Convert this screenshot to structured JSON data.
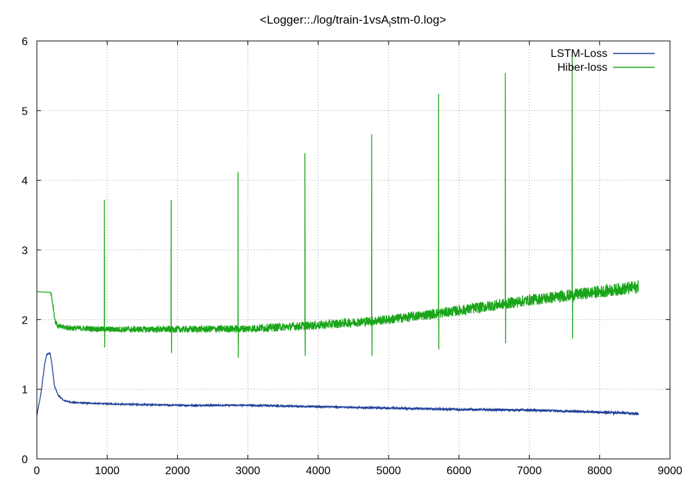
{
  "chart_data": {
    "type": "line",
    "title_prefix": "<Logger::./log/train-1vsA",
    "title_sub": "l",
    "title_suffix": "stm-0.log>",
    "xlabel": "",
    "ylabel": "",
    "xlim": [
      0,
      9000
    ],
    "ylim": [
      0,
      6
    ],
    "xticks": [
      0,
      1000,
      2000,
      3000,
      4000,
      5000,
      6000,
      7000,
      8000,
      9000
    ],
    "yticks": [
      0,
      1,
      2,
      3,
      4,
      5,
      6
    ],
    "grid": true,
    "legend_position": "top-right",
    "series": [
      {
        "name": "LSTM-Loss",
        "color": "#1f3f99",
        "noise": 0.012,
        "points": [
          [
            0,
            0.62
          ],
          [
            60,
            0.95
          ],
          [
            110,
            1.35
          ],
          [
            140,
            1.5
          ],
          [
            190,
            1.52
          ],
          [
            215,
            1.35
          ],
          [
            250,
            1.05
          ],
          [
            300,
            0.92
          ],
          [
            380,
            0.84
          ],
          [
            500,
            0.81
          ],
          [
            1000,
            0.79
          ],
          [
            2000,
            0.77
          ],
          [
            3000,
            0.77
          ],
          [
            4000,
            0.75
          ],
          [
            5000,
            0.73
          ],
          [
            6000,
            0.71
          ],
          [
            7000,
            0.7
          ],
          [
            8000,
            0.67
          ],
          [
            8550,
            0.65
          ]
        ]
      },
      {
        "name": "Hiber-loss",
        "color": "#1aa51a",
        "noise": 0.06,
        "points": [
          [
            0,
            2.4
          ],
          [
            200,
            2.39
          ],
          [
            230,
            2.2
          ],
          [
            260,
            1.98
          ],
          [
            300,
            1.9
          ],
          [
            500,
            1.88
          ],
          [
            1000,
            1.86
          ],
          [
            2000,
            1.86
          ],
          [
            3000,
            1.87
          ],
          [
            4000,
            1.92
          ],
          [
            5000,
            2.0
          ],
          [
            6000,
            2.13
          ],
          [
            7000,
            2.28
          ],
          [
            8000,
            2.4
          ],
          [
            8550,
            2.47
          ]
        ],
        "spikes": [
          {
            "x": 960,
            "peak": 3.72,
            "dip": 1.6
          },
          {
            "x": 1910,
            "peak": 3.72,
            "dip": 1.52
          },
          {
            "x": 2860,
            "peak": 4.12,
            "dip": 1.45
          },
          {
            "x": 3810,
            "peak": 4.39,
            "dip": 1.48
          },
          {
            "x": 4760,
            "peak": 4.66,
            "dip": 1.48
          },
          {
            "x": 5710,
            "peak": 5.24,
            "dip": 1.57
          },
          {
            "x": 6660,
            "peak": 5.54,
            "dip": 1.66
          },
          {
            "x": 7610,
            "peak": 5.8,
            "dip": 1.73
          }
        ]
      }
    ]
  }
}
